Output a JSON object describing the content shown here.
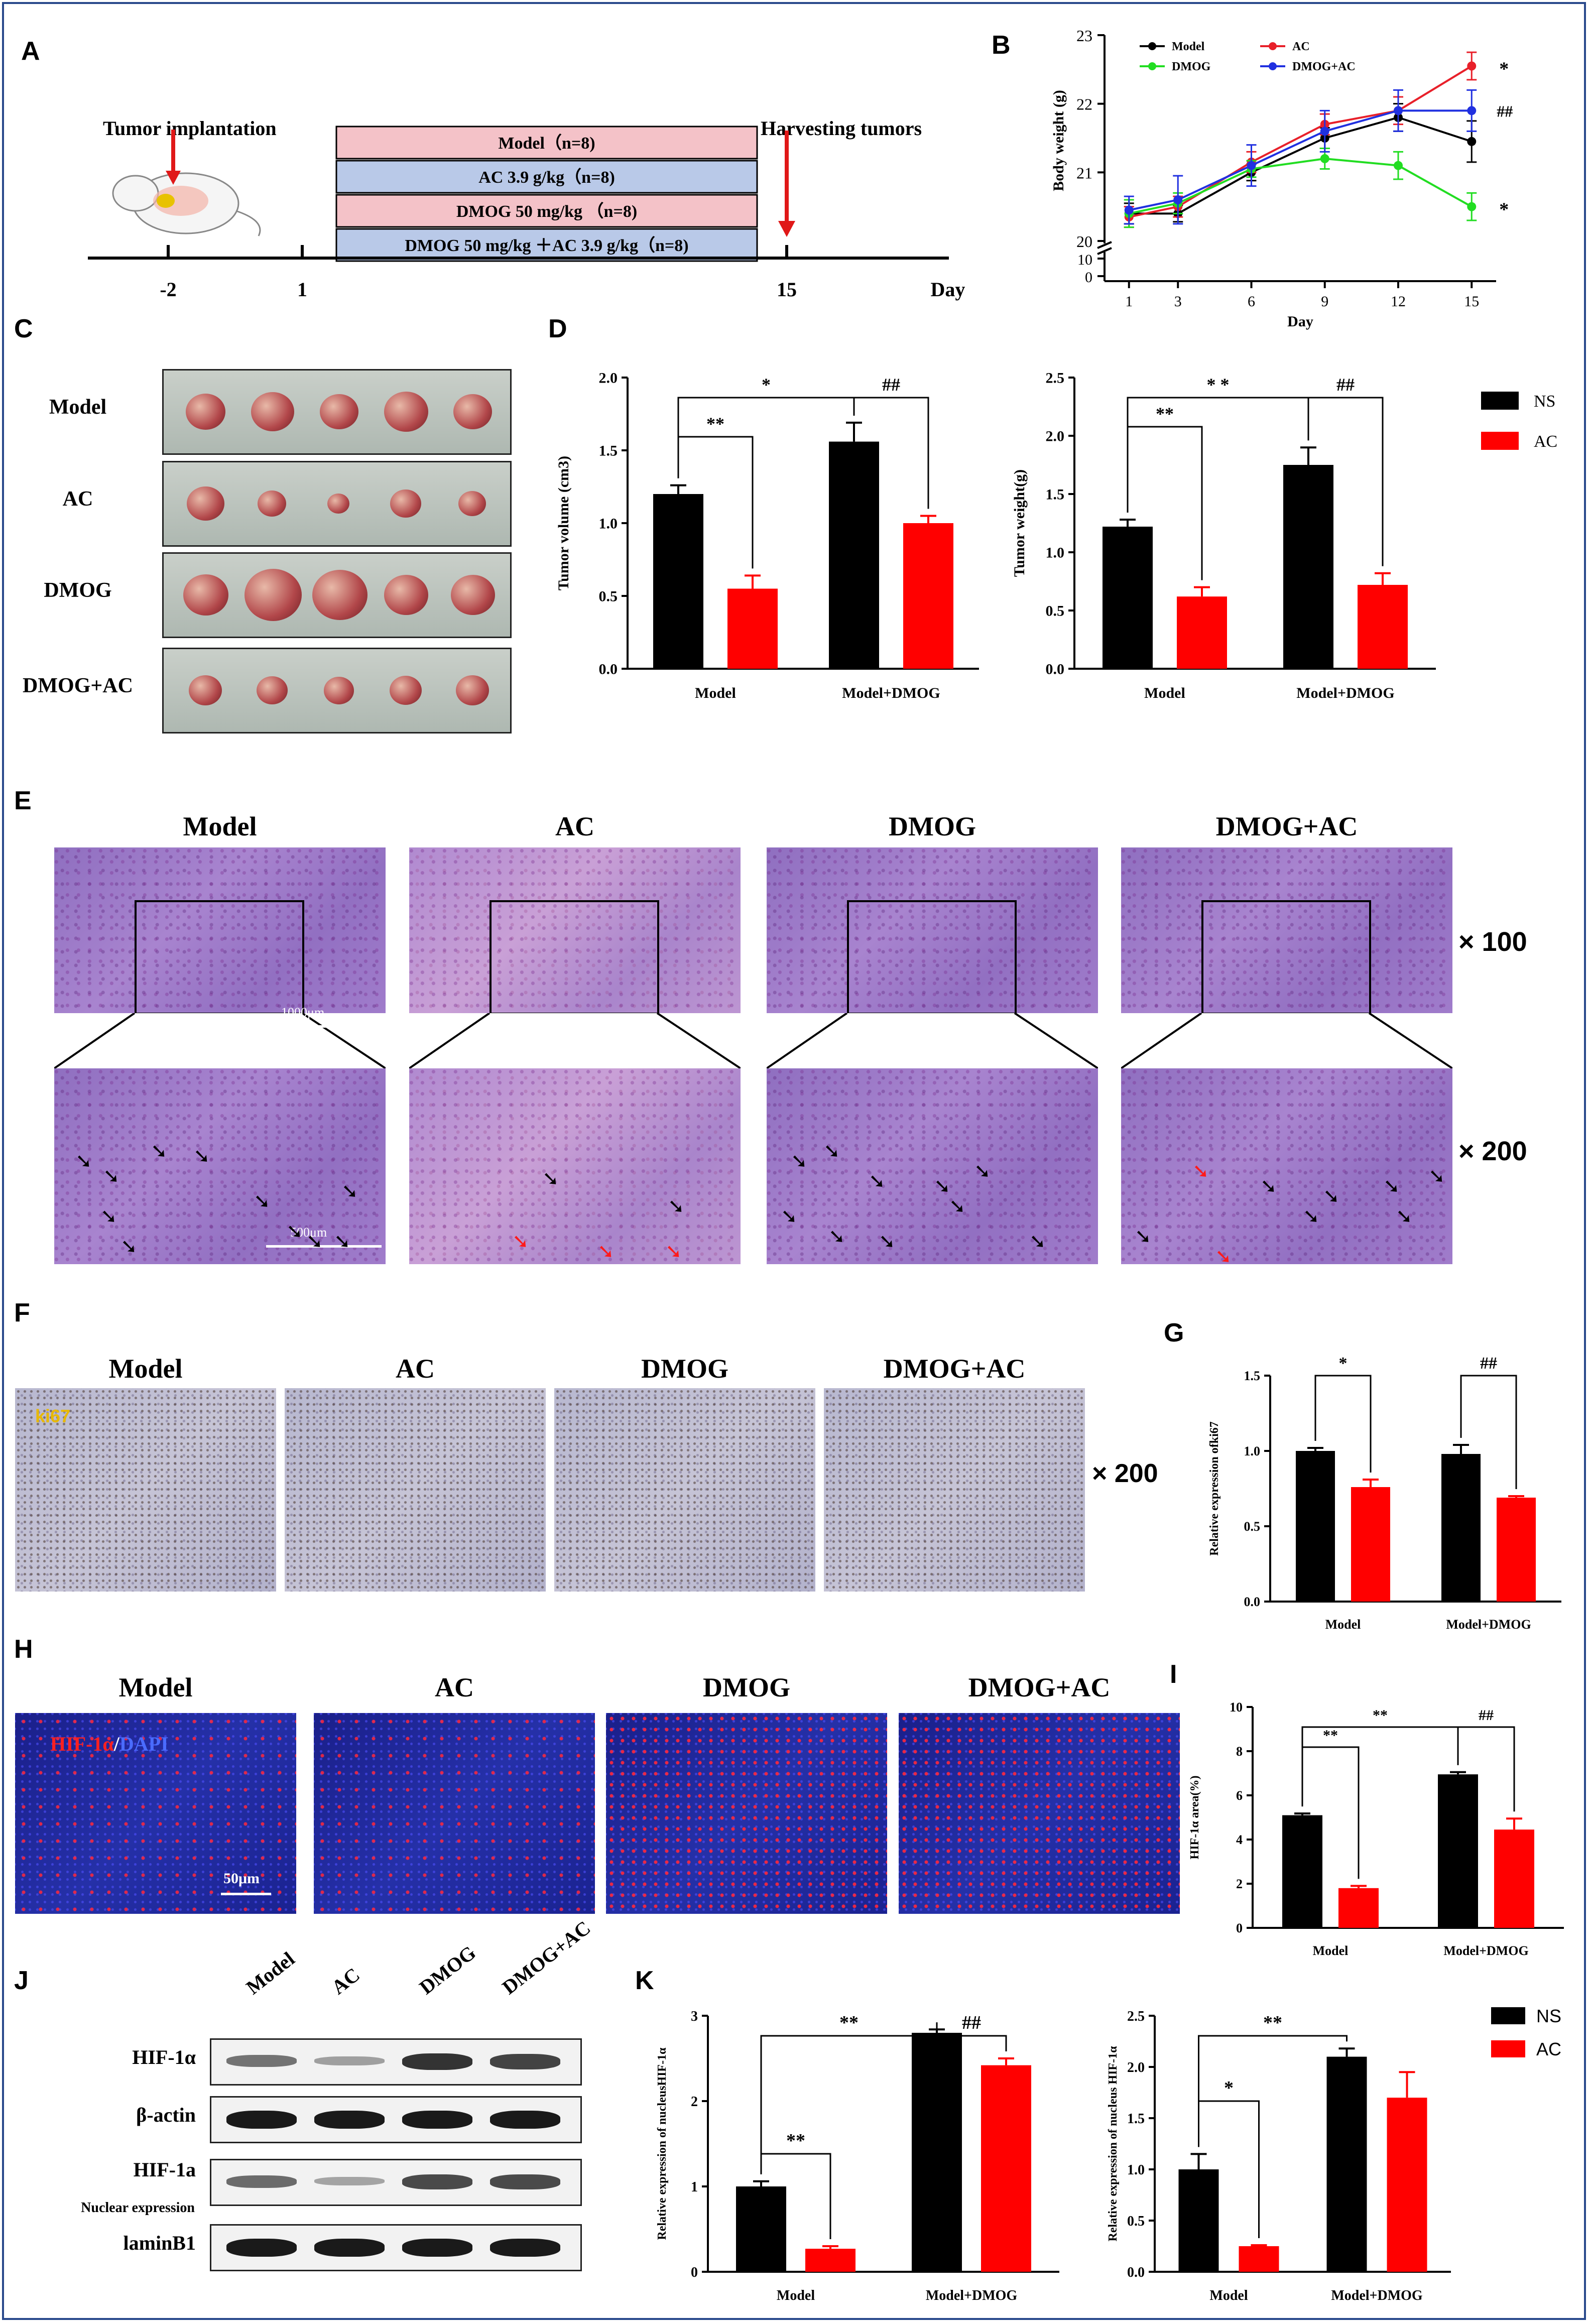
{
  "panels": {
    "A": "A",
    "B": "B",
    "C": "C",
    "D": "D",
    "E": "E",
    "F": "F",
    "G": "G",
    "H": "H",
    "I": "I",
    "J": "J",
    "K": "K"
  },
  "panelA": {
    "tumor_implantation": "Tumor implantation",
    "harvesting": "Harvesting tumors",
    "groups": [
      "Model（n=8)",
      "AC 3.9 g/kg（n=8)",
      "DMOG 50 mg/kg （n=8)",
      "DMOG 50 mg/kg ＋AC 3.9 g/kg（n=8)"
    ],
    "group_colors": [
      "#f4c2c8",
      "#b9c9e8",
      "#f4c2c8",
      "#b9c9e8"
    ],
    "ticks": [
      "-2",
      "1",
      "15"
    ],
    "day_label": "Day"
  },
  "panelC": {
    "rows": [
      "Model",
      "AC",
      "DMOG",
      "DMOG+AC"
    ]
  },
  "panelE": {
    "titles": [
      "Model",
      "AC",
      "DMOG",
      "DMOG+AC"
    ],
    "mag_low": "× 100",
    "mag_high": "× 200",
    "scale_low": "1000μm",
    "scale_high": "500μm"
  },
  "panelF": {
    "titles": [
      "Model",
      "AC",
      "DMOG",
      "DMOG+AC"
    ],
    "stain": "ki67",
    "mag": "× 200"
  },
  "panelH": {
    "titles": [
      "Model",
      "AC",
      "DMOG",
      "DMOG+AC"
    ],
    "stain_red": "HIF-1α",
    "stain_sep": "/",
    "stain_blue": "DAPI",
    "scale": "50μm"
  },
  "panelJ": {
    "lanes": [
      "Model",
      "AC",
      "DMOG",
      "DMOG+AC"
    ],
    "rows": [
      "HIF-1α",
      "β-actin",
      "HIF-1a",
      "laminB1"
    ],
    "row3_sub": "Nuclear expression"
  },
  "legend": {
    "ns": "NS",
    "ac": "AC",
    "ns_color": "#000000",
    "ac_color": "#ff0000"
  },
  "chart_data": [
    {
      "id": "B",
      "type": "line",
      "xlabel": "Day",
      "ylabel": "Body weight (g)",
      "x": [
        1,
        3,
        6,
        9,
        12,
        15
      ],
      "ylim": [
        20,
        23
      ],
      "yticks": [
        "20",
        "21",
        "22",
        "23"
      ],
      "lower_axis_ticks": [
        "0",
        "10"
      ],
      "series": [
        {
          "name": "Model",
          "color": "#000000",
          "values": [
            20.4,
            20.4,
            21.0,
            21.5,
            21.8,
            21.45
          ],
          "err": [
            0.15,
            0.12,
            0.12,
            0.15,
            0.2,
            0.3
          ]
        },
        {
          "name": "AC",
          "color": "#e8202a",
          "values": [
            20.35,
            20.5,
            21.15,
            21.7,
            21.9,
            22.55
          ],
          "err": [
            0.15,
            0.15,
            0.15,
            0.15,
            0.2,
            0.2
          ]
        },
        {
          "name": "DMOG",
          "color": "#22dd22",
          "values": [
            20.4,
            20.55,
            21.05,
            21.2,
            21.1,
            20.5
          ],
          "err": [
            0.2,
            0.15,
            0.12,
            0.15,
            0.2,
            0.2
          ]
        },
        {
          "name": "DMOG+AC",
          "color": "#2030e0",
          "values": [
            20.45,
            20.6,
            21.1,
            21.6,
            21.9,
            21.9
          ],
          "err": [
            0.2,
            0.35,
            0.3,
            0.3,
            0.3,
            0.3
          ]
        }
      ],
      "annotations": [
        "*",
        "##",
        "*"
      ]
    },
    {
      "id": "D1",
      "type": "bar",
      "ylabel": "Tumor volume (cm3)",
      "categories": [
        "Model",
        "Model+DMOG"
      ],
      "ylim": [
        0,
        2.0
      ],
      "yticks": [
        "0.0",
        "0.5",
        "1.0",
        "1.5",
        "2.0"
      ],
      "series": [
        {
          "name": "NS",
          "values": [
            1.2,
            1.56
          ],
          "err": [
            0.06,
            0.13
          ]
        },
        {
          "name": "AC",
          "values": [
            0.55,
            1.0
          ],
          "err": [
            0.09,
            0.05
          ]
        }
      ],
      "annotations": {
        "within_model": "**",
        "between_ns": "*",
        "within_dmog": "##"
      }
    },
    {
      "id": "D2",
      "type": "bar",
      "ylabel": "Tumor weight(g)",
      "categories": [
        "Model",
        "Model+DMOG"
      ],
      "ylim": [
        0,
        2.5
      ],
      "yticks": [
        "0.0",
        "0.5",
        "1.0",
        "1.5",
        "2.0",
        "2.5"
      ],
      "series": [
        {
          "name": "NS",
          "values": [
            1.22,
            1.75
          ],
          "err": [
            0.06,
            0.15
          ]
        },
        {
          "name": "AC",
          "values": [
            0.62,
            0.72
          ],
          "err": [
            0.08,
            0.1
          ]
        }
      ],
      "annotations": {
        "within_model": "**",
        "between_ns": "* *",
        "within_dmog": "##"
      }
    },
    {
      "id": "G",
      "type": "bar",
      "ylabel": "Relative expression ofki67",
      "categories": [
        "Model",
        "Model+DMOG"
      ],
      "ylim": [
        0,
        1.5
      ],
      "yticks": [
        "0.0",
        "0.5",
        "1.0",
        "1.5"
      ],
      "series": [
        {
          "name": "NS",
          "values": [
            1.0,
            0.98
          ],
          "err": [
            0.02,
            0.06
          ]
        },
        {
          "name": "AC",
          "values": [
            0.76,
            0.69
          ],
          "err": [
            0.05,
            0.01
          ]
        }
      ],
      "annotations": {
        "within_model": "*",
        "within_dmog": "##"
      }
    },
    {
      "id": "I",
      "type": "bar",
      "ylabel": "HIF-1α area(%)",
      "categories": [
        "Model",
        "Model+DMOG"
      ],
      "ylim": [
        0,
        10
      ],
      "yticks": [
        "0",
        "2",
        "4",
        "6",
        "8",
        "10"
      ],
      "series": [
        {
          "name": "NS",
          "values": [
            5.1,
            6.95
          ],
          "err": [
            0.08,
            0.1
          ]
        },
        {
          "name": "AC",
          "values": [
            1.8,
            4.45
          ],
          "err": [
            0.1,
            0.5
          ]
        }
      ],
      "annotations": {
        "within_model": "**",
        "between_ns": "**",
        "within_dmog": "##"
      }
    },
    {
      "id": "K1",
      "type": "bar",
      "ylabel": "Relative expression of nucleusHIF-1α",
      "categories": [
        "Model",
        "Model+DMOG"
      ],
      "ylim": [
        0,
        3
      ],
      "yticks": [
        "0",
        "1",
        "2",
        "3"
      ],
      "series": [
        {
          "name": "NS",
          "values": [
            1.0,
            2.8
          ],
          "err": [
            0.06,
            0.04
          ]
        },
        {
          "name": "AC",
          "values": [
            0.27,
            2.42
          ],
          "err": [
            0.03,
            0.08
          ]
        }
      ],
      "annotations": {
        "within_model": "**",
        "between_ns": "**",
        "within_dmog": "##"
      }
    },
    {
      "id": "K2",
      "type": "bar",
      "ylabel": "Relative expression of nucleus HIF-1α",
      "categories": [
        "Model",
        "Model+DMOG"
      ],
      "ylim": [
        0,
        2.5
      ],
      "yticks": [
        "0.0",
        "0.5",
        "1.0",
        "1.5",
        "2.0",
        "2.5"
      ],
      "series": [
        {
          "name": "NS",
          "values": [
            1.0,
            2.1
          ],
          "err": [
            0.15,
            0.08
          ]
        },
        {
          "name": "AC",
          "values": [
            0.25,
            1.7
          ],
          "err": [
            0.01,
            0.25
          ]
        }
      ],
      "annotations": {
        "within_model": "*",
        "between_ns": "**"
      }
    }
  ]
}
